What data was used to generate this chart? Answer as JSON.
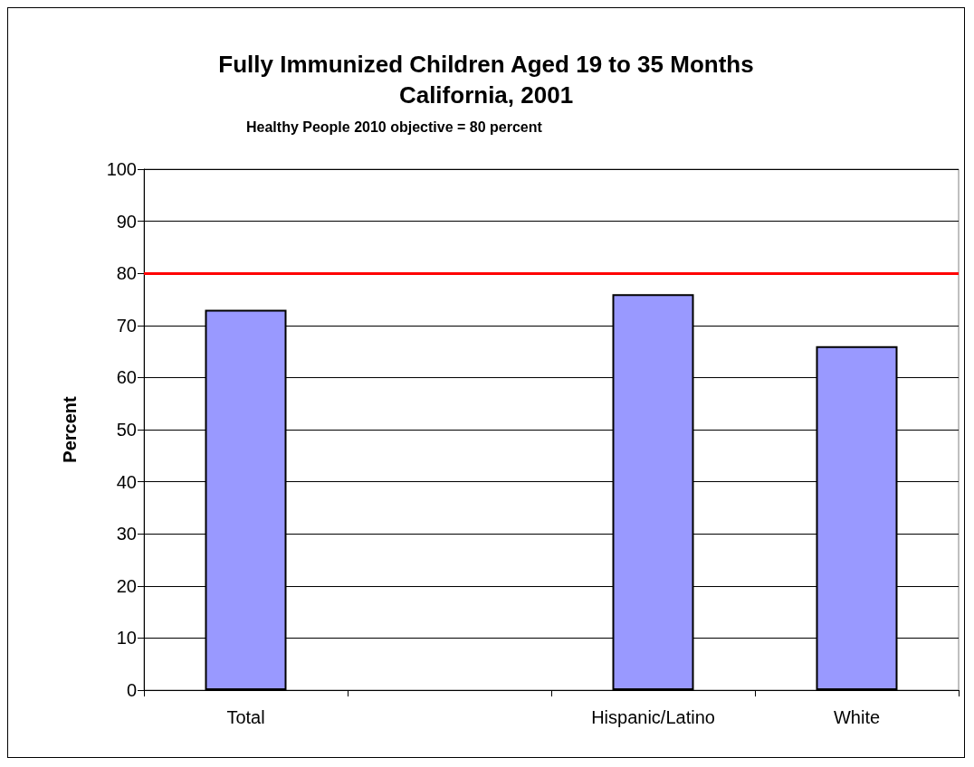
{
  "chart_data": {
    "type": "bar",
    "title": "Fully Immunized Children Aged 19 to 35 Months\nCalifornia, 2001",
    "subtitle": "Healthy People 2010 objective = 80 percent",
    "ylabel": "Percent",
    "categories": [
      "Total",
      null,
      "Hispanic/Latino",
      "White"
    ],
    "values": [
      73,
      null,
      76,
      66
    ],
    "color": "#9999ff",
    "ylim": [
      0,
      100
    ],
    "yticks": [
      0,
      10,
      20,
      30,
      40,
      50,
      60,
      70,
      80,
      90,
      100
    ],
    "grid": "y",
    "ref_lines": [
      {
        "axis": "y",
        "value": 80,
        "color": "#ff0000"
      }
    ]
  }
}
